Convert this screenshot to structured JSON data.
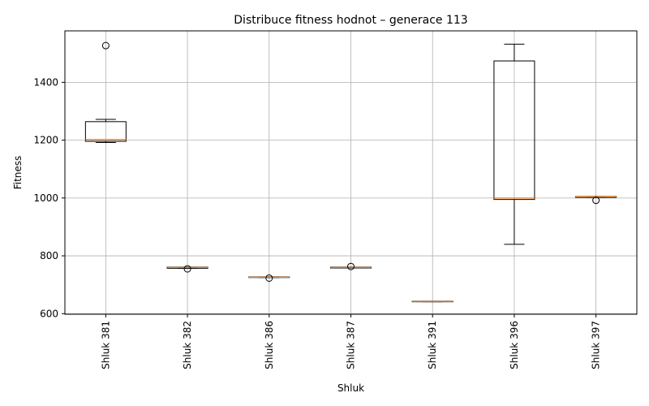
{
  "chart_data": {
    "type": "box",
    "title": "Distribuce fitness hodnot – generace 113",
    "xlabel": "Shluk",
    "ylabel": "Fitness",
    "ylim": [
      598,
      1578
    ],
    "yticks": [
      600,
      800,
      1000,
      1200,
      1400
    ],
    "grid": true,
    "categories": [
      "Shluk 381",
      "Shluk 382",
      "Shluk 386",
      "Shluk 387",
      "Shluk 391",
      "Shluk 396",
      "Shluk 397"
    ],
    "boxes": [
      {
        "whisker_low": 1192,
        "q1": 1196,
        "median": 1202,
        "q3": 1264,
        "whisker_high": 1272,
        "outliers": [
          1527
        ]
      },
      {
        "whisker_low": 757,
        "q1": 757,
        "median": 760,
        "q3": 761,
        "whisker_high": 761,
        "outliers": [
          755
        ]
      },
      {
        "whisker_low": 725,
        "q1": 725,
        "median": 726,
        "q3": 727,
        "whisker_high": 727,
        "outliers": [
          723
        ]
      },
      {
        "whisker_low": 758,
        "q1": 758,
        "median": 760,
        "q3": 761,
        "whisker_high": 761,
        "outliers": [
          763
        ]
      },
      {
        "whisker_low": 641,
        "q1": 641,
        "median": 642,
        "q3": 643,
        "whisker_high": 643,
        "outliers": []
      },
      {
        "whisker_low": 840,
        "q1": 995,
        "median": 1000,
        "q3": 1474,
        "whisker_high": 1532,
        "outliers": []
      },
      {
        "whisker_low": 1002,
        "q1": 1002,
        "median": 1004,
        "q3": 1005,
        "whisker_high": 1005,
        "outliers": [
          992
        ]
      }
    ],
    "colors": {
      "box": "#000000",
      "median": "#ff7f0e",
      "grid": "#b0b0b0"
    }
  }
}
